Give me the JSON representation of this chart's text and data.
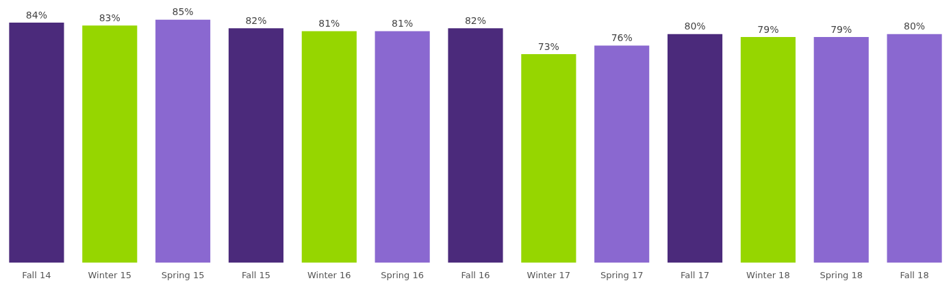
{
  "chart_data": {
    "type": "bar",
    "categories": [
      "Fall 14",
      "Winter 15",
      "Spring 15",
      "Fall 15",
      "Winter 16",
      "Spring 16",
      "Fall 16",
      "Winter 17",
      "Spring 17",
      "Fall 17",
      "Winter 18",
      "Spring 18",
      "Fall 18"
    ],
    "values": [
      84,
      83,
      85,
      82,
      81,
      81,
      82,
      73,
      76,
      80,
      79,
      79,
      80
    ],
    "colors": [
      "#4b2a7b",
      "#96d600",
      "#8a68d0",
      "#4b2a7b",
      "#96d600",
      "#8a68d0",
      "#4b2a7b",
      "#96d600",
      "#8a68d0",
      "#4b2a7b",
      "#96d600",
      "#8a68d0",
      "#8a68d0"
    ],
    "value_labels": [
      "84%",
      "83%",
      "85%",
      "82%",
      "81%",
      "81%",
      "82%",
      "73%",
      "76%",
      "80%",
      "79%",
      "79%",
      "80%"
    ],
    "tick_labels": "x",
    "grid": false,
    "legend": false
  }
}
